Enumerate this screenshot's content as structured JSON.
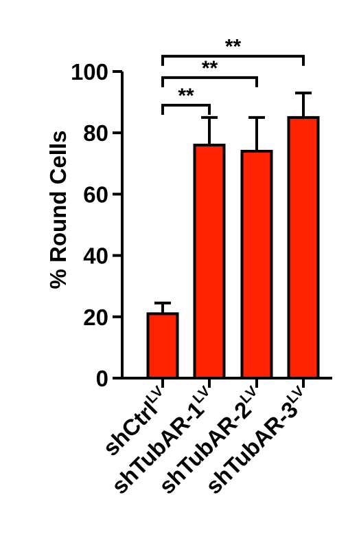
{
  "chart_data": {
    "type": "bar",
    "categories": [
      "shCtrl",
      "shTubAR-1",
      "shTubAR-2",
      "shTubAR-3"
    ],
    "category_superscripts": [
      "LV",
      "LV",
      "LV",
      "LV"
    ],
    "values": [
      21,
      76,
      74,
      85
    ],
    "error": [
      3.5,
      9,
      11,
      8
    ],
    "title": "",
    "xlabel": "",
    "ylabel": "% Round Cells",
    "ylim": [
      0,
      100
    ],
    "yticks": [
      0,
      20,
      40,
      60,
      80,
      100
    ],
    "bar_color": "#ff2200",
    "grid": false,
    "significance": [
      {
        "from": 0,
        "to": 1,
        "label": "**"
      },
      {
        "from": 0,
        "to": 2,
        "label": "**"
      },
      {
        "from": 0,
        "to": 3,
        "label": "**"
      }
    ]
  }
}
